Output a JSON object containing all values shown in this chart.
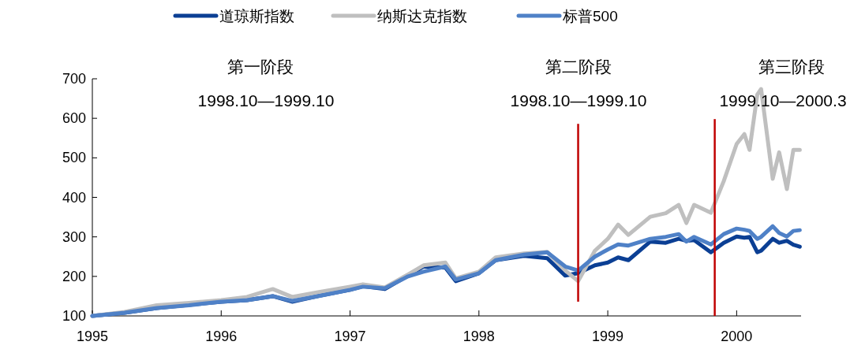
{
  "chart_data": {
    "type": "line",
    "x": [
      1995.0,
      1995.25,
      1995.5,
      1995.75,
      1996.0,
      1996.2,
      1996.4,
      1996.55,
      1996.75,
      1997.0,
      1997.1,
      1997.27,
      1997.45,
      1997.57,
      1997.74,
      1997.82,
      1998.0,
      1998.13,
      1998.35,
      1998.53,
      1998.67,
      1998.77,
      1998.9,
      1999.0,
      1999.08,
      1999.16,
      1999.33,
      1999.45,
      1999.55,
      1999.61,
      1999.67,
      1999.8,
      1999.9,
      2000.0,
      2000.06,
      2000.1,
      2000.16,
      2000.19,
      2000.28,
      2000.33,
      2000.39,
      2000.44,
      2000.49
    ],
    "series": [
      {
        "name": "道琼斯指数",
        "color": "#0b3f94",
        "values": [
          100,
          108,
          120,
          128,
          136,
          140,
          150,
          136,
          150,
          166,
          175,
          168,
          202,
          225,
          222,
          188,
          208,
          241,
          252,
          246,
          202,
          208,
          228,
          235,
          248,
          241,
          288,
          285,
          295,
          290,
          292,
          261,
          285,
          301,
          298,
          300,
          261,
          265,
          295,
          285,
          290,
          280,
          275
        ]
      },
      {
        "name": "纳斯达克指数",
        "color": "#bfbfbf",
        "values": [
          100,
          110,
          127,
          133,
          140,
          148,
          168,
          148,
          160,
          174,
          180,
          172,
          205,
          228,
          235,
          195,
          212,
          248,
          258,
          262,
          215,
          188,
          265,
          295,
          331,
          305,
          351,
          360,
          381,
          335,
          381,
          361,
          441,
          535,
          560,
          520,
          660,
          674,
          447,
          514,
          421,
          520,
          520
        ]
      },
      {
        "name": "标普500",
        "color": "#4f81c7",
        "values": [
          100,
          108,
          120,
          127,
          136,
          140,
          150,
          138,
          150,
          166,
          174,
          170,
          200,
          212,
          225,
          192,
          208,
          241,
          255,
          261,
          225,
          215,
          250,
          268,
          281,
          278,
          295,
          300,
          307,
          288,
          300,
          281,
          307,
          321,
          318,
          315,
          295,
          300,
          327,
          310,
          301,
          315,
          317
        ]
      }
    ],
    "xlim": [
      1995,
      2000.5
    ],
    "xticks": [
      1995,
      1996,
      1997,
      1998,
      1999,
      2000
    ],
    "ylim": [
      100,
      700
    ],
    "yticks": [
      100,
      200,
      300,
      400,
      500,
      600,
      700
    ],
    "ref_lines": [
      {
        "axis": "x",
        "value": 1998.77,
        "color": "#c00000"
      },
      {
        "axis": "x",
        "value": 1999.83,
        "color": "#c00000"
      }
    ],
    "annotations": [
      "第一阶段",
      "1998.10—1999.10",
      "第二阶段",
      "1998.10—1999.10",
      "第三阶段",
      "1999.10—2000.3"
    ],
    "legend": "top",
    "grid": false,
    "line_style": "solid"
  }
}
